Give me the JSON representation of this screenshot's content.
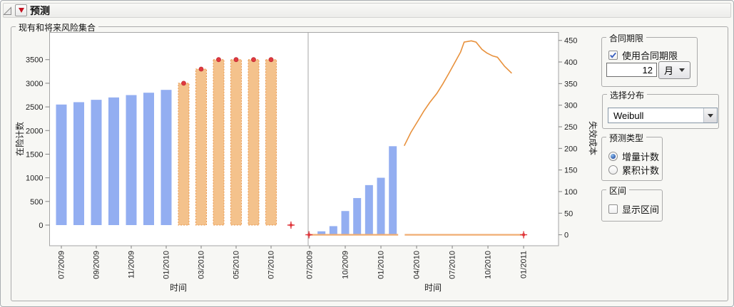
{
  "window": {
    "title": "预测"
  },
  "section": {
    "label": "现有和将来风险集合"
  },
  "controls": {
    "contract": {
      "label": "合同期限",
      "checkbox_label": "使用合同期限",
      "checked": true,
      "duration_value": "12",
      "unit_value": "月"
    },
    "distribution": {
      "label": "选择分布",
      "value": "Weibull"
    },
    "forecast_type": {
      "label": "预测类型",
      "options": [
        {
          "label": "增量计数",
          "selected": true
        },
        {
          "label": "累积计数",
          "selected": false
        }
      ]
    },
    "interval": {
      "label": "区间",
      "checkbox_label": "显示区间",
      "checked": false
    }
  },
  "colors": {
    "blue_bar": "#93AEF1",
    "orange_bar_fill": "#F4C28C",
    "orange_bar_stroke": "#E8964B",
    "flat_line": "#F0AD72",
    "curve_line": "#E8913C",
    "marker_red": "#E0393E",
    "marker_red_edge": "#C22F38",
    "axis_line": "#A6A6A6",
    "tick_line": "#808080"
  },
  "chart_data": [
    {
      "id": "at-risk-counts",
      "type": "bar",
      "title": "",
      "xlabel": "时间",
      "ylabel": "在险计数",
      "ylabel_side": "left",
      "grid": false,
      "legend": "none",
      "x_axis_note": "m = months after 07/2009",
      "ylim": [
        0,
        3900
      ],
      "yticks": [
        0,
        500,
        1000,
        1500,
        2000,
        2500,
        3000,
        3500
      ],
      "xticks": [
        {
          "m": 0,
          "label": "07/2009"
        },
        {
          "m": 2,
          "label": "09/2009"
        },
        {
          "m": 4,
          "label": "11/2009"
        },
        {
          "m": 6,
          "label": "01/2010"
        },
        {
          "m": 8,
          "label": "03/2010"
        },
        {
          "m": 10,
          "label": "05/2010"
        },
        {
          "m": 12,
          "label": "07/2010"
        }
      ],
      "bars": [
        {
          "name": "observed-risk-set",
          "fill_key": "blue_bar",
          "dashed": false,
          "dots": false,
          "points": [
            {
              "m": 0,
              "date": "07/2009",
              "v": 2550
            },
            {
              "m": 1,
              "date": "08/2009",
              "v": 2600
            },
            {
              "m": 2,
              "date": "09/2009",
              "v": 2650
            },
            {
              "m": 3,
              "date": "10/2009",
              "v": 2700
            },
            {
              "m": 4,
              "date": "11/2009",
              "v": 2750
            },
            {
              "m": 5,
              "date": "12/2009",
              "v": 2800
            },
            {
              "m": 6,
              "date": "01/2010",
              "v": 2860
            }
          ]
        },
        {
          "name": "forecast-risk-set",
          "fill_key": "orange_bar_fill",
          "stroke_key": "orange_bar_stroke",
          "dashed": true,
          "dots": true,
          "points": [
            {
              "m": 7,
              "date": "02/2010",
              "v": 3000
            },
            {
              "m": 8,
              "date": "03/2010",
              "v": 3300
            },
            {
              "m": 9,
              "date": "04/2010",
              "v": 3500
            },
            {
              "m": 10,
              "date": "05/2010",
              "v": 3500
            },
            {
              "m": 11,
              "date": "06/2010",
              "v": 3500
            },
            {
              "m": 12,
              "date": "07/2010",
              "v": 3500
            }
          ]
        }
      ],
      "lines": [],
      "markers": [
        {
          "type": "plus",
          "m": 13.14,
          "v": 0
        }
      ]
    },
    {
      "id": "failure-cost-forecast",
      "type": "bar+line",
      "title": "",
      "xlabel": "时间",
      "ylabel": "失效成本",
      "ylabel_side": "right",
      "grid": false,
      "legend": "none",
      "x_axis_note": "m = months after 07/2009",
      "ylim": [
        0,
        470
      ],
      "yticks": [
        0,
        50,
        100,
        150,
        200,
        250,
        300,
        350,
        400,
        450
      ],
      "xticks": [
        {
          "m": 0,
          "label": "07/2009"
        },
        {
          "m": 3,
          "label": "10/2009"
        },
        {
          "m": 6,
          "label": "01/2010"
        },
        {
          "m": 9,
          "label": "04/2010"
        },
        {
          "m": 12,
          "label": "07/2010"
        },
        {
          "m": 15,
          "label": "10/2010"
        },
        {
          "m": 18,
          "label": "01/2011"
        }
      ],
      "bars": [
        {
          "name": "observed-failure-counts",
          "fill_key": "blue_bar",
          "dashed": false,
          "dots": false,
          "points": [
            {
              "m": 1,
              "date": "08/2009",
              "v": 8
            },
            {
              "m": 2,
              "date": "09/2009",
              "v": 20
            },
            {
              "m": 3,
              "date": "10/2009",
              "v": 55
            },
            {
              "m": 4,
              "date": "11/2009",
              "v": 85
            },
            {
              "m": 5,
              "date": "12/2009",
              "v": 115
            },
            {
              "m": 6,
              "date": "01/2010",
              "v": 132
            },
            {
              "m": 7,
              "date": "02/2010",
              "v": 205
            }
          ]
        }
      ],
      "lines": [
        {
          "name": "observed-zero-line",
          "color_key": "flat_line",
          "width": 2.2,
          "start_marker": "plus",
          "end_marker": null,
          "points": [
            [
              -0.05,
              0
            ],
            [
              7.45,
              0
            ]
          ]
        },
        {
          "name": "forecast-zero-line",
          "color_key": "flat_line",
          "width": 2.2,
          "start_marker": null,
          "end_marker": "plus",
          "points": [
            [
              8.0,
              0
            ],
            [
              18.0,
              0
            ]
          ]
        },
        {
          "name": "forecast-cost-curve",
          "color_key": "curve_line",
          "width": 1.6,
          "start_marker": null,
          "end_marker": null,
          "points": [
            [
              7.96,
              206
            ],
            [
              8.52,
              237
            ],
            [
              9.12,
              264
            ],
            [
              9.6,
              286
            ],
            [
              10.1,
              306
            ],
            [
              10.7,
              327
            ],
            [
              11.2,
              349
            ],
            [
              11.7,
              373
            ],
            [
              12.2,
              398
            ],
            [
              12.7,
              423
            ],
            [
              13.0,
              446
            ],
            [
              13.6,
              449
            ],
            [
              14.0,
              446
            ],
            [
              14.5,
              429
            ],
            [
              14.9,
              421
            ],
            [
              15.4,
              414
            ],
            [
              15.8,
              411
            ],
            [
              16.4,
              390
            ],
            [
              17.0,
              374
            ]
          ]
        }
      ],
      "markers": []
    }
  ]
}
